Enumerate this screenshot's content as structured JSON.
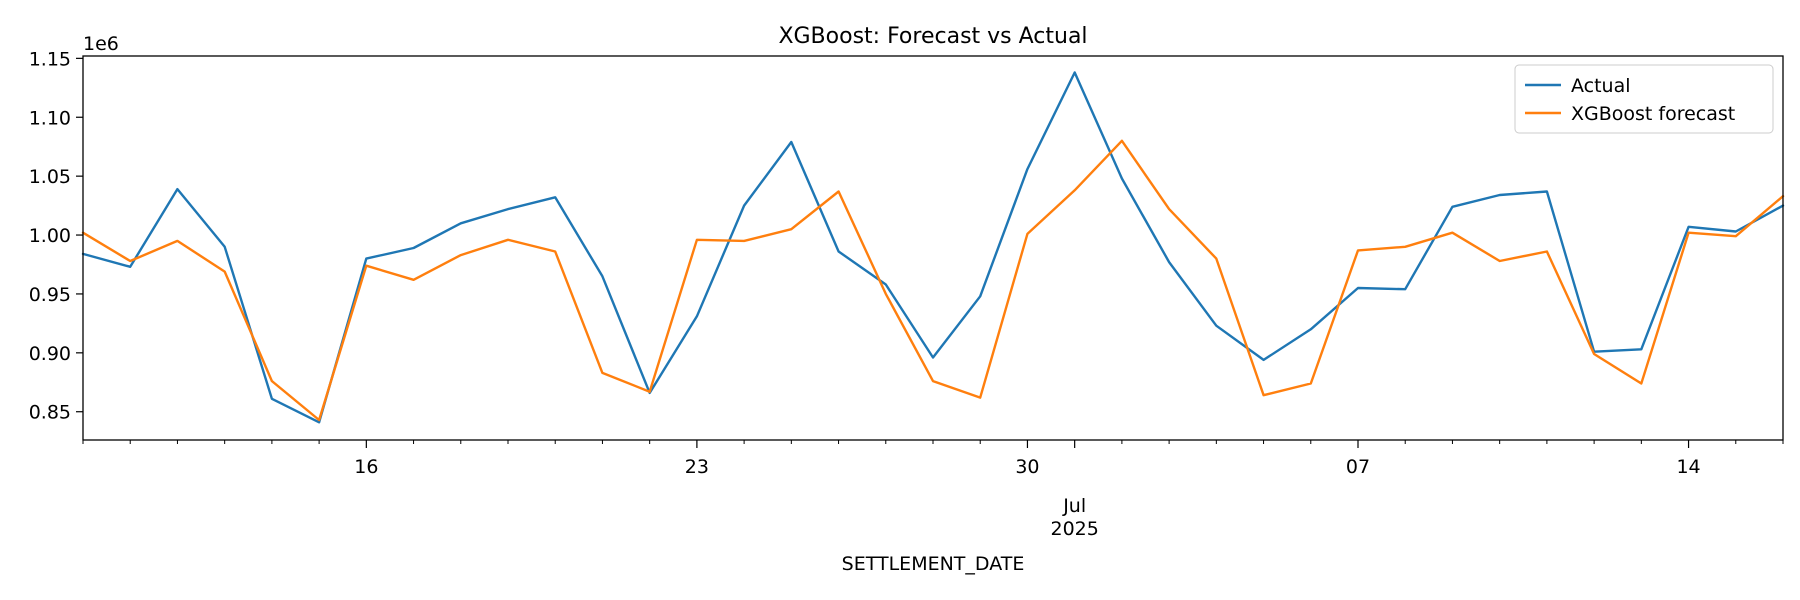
{
  "chart_data": {
    "type": "line",
    "title": "XGBoost: Forecast vs Actual",
    "xlabel": "SETTLEMENT_DATE",
    "ylabel": "",
    "y_offset_label": "1e6",
    "ylim": [
      0.826,
      1.152
    ],
    "y_ticks": [
      "0.85",
      "0.90",
      "0.95",
      "1.00",
      "1.05",
      "1.10",
      "1.15"
    ],
    "x": [
      "2025-06-10",
      "2025-06-11",
      "2025-06-12",
      "2025-06-13",
      "2025-06-14",
      "2025-06-15",
      "2025-06-16",
      "2025-06-17",
      "2025-06-18",
      "2025-06-19",
      "2025-06-20",
      "2025-06-21",
      "2025-06-22",
      "2025-06-23",
      "2025-06-24",
      "2025-06-25",
      "2025-06-26",
      "2025-06-27",
      "2025-06-28",
      "2025-06-29",
      "2025-06-30",
      "2025-07-01",
      "2025-07-02",
      "2025-07-03",
      "2025-07-04",
      "2025-07-05",
      "2025-07-06",
      "2025-07-07",
      "2025-07-08",
      "2025-07-09",
      "2025-07-10",
      "2025-07-11",
      "2025-07-12",
      "2025-07-13",
      "2025-07-14",
      "2025-07-15",
      "2025-07-16"
    ],
    "x_ticks": [
      {
        "date": "2025-06-16",
        "label": "16"
      },
      {
        "date": "2025-06-23",
        "label": "23"
      },
      {
        "date": "2025-06-30",
        "label": "30"
      },
      {
        "date": "2025-07-01",
        "label": "Jul",
        "sublabel": "2025"
      },
      {
        "date": "2025-07-07",
        "label": "07"
      },
      {
        "date": "2025-07-14",
        "label": "14"
      }
    ],
    "series": [
      {
        "name": "Actual",
        "color": "#1f77b4",
        "values": [
          0.984,
          0.973,
          1.039,
          0.99,
          0.861,
          0.841,
          0.98,
          0.989,
          1.01,
          1.022,
          1.032,
          0.965,
          0.866,
          0.931,
          1.025,
          1.079,
          0.986,
          0.958,
          0.896,
          0.948,
          1.056,
          1.138,
          1.048,
          0.977,
          0.923,
          0.894,
          0.92,
          0.955,
          0.954,
          1.024,
          1.034,
          1.037,
          0.901,
          0.903,
          1.007,
          1.003,
          1.025
        ]
      },
      {
        "name": "XGBoost forecast",
        "color": "#ff7f0e",
        "values": [
          1.002,
          0.978,
          0.995,
          0.969,
          0.876,
          0.843,
          0.974,
          0.962,
          0.983,
          0.996,
          0.986,
          0.883,
          0.867,
          0.996,
          0.995,
          1.005,
          1.037,
          0.95,
          0.876,
          0.862,
          1.001,
          1.038,
          1.08,
          1.022,
          0.98,
          0.864,
          0.874,
          0.987,
          0.99,
          1.002,
          0.978,
          0.986,
          0.899,
          0.874,
          1.002,
          0.999,
          1.033
        ]
      }
    ],
    "legend_position": "upper right",
    "grid": false
  }
}
